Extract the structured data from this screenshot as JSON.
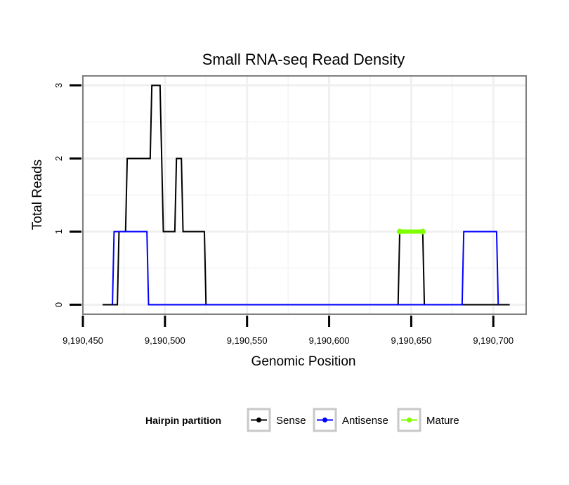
{
  "chart_data": {
    "type": "line",
    "title": "Small RNA-seq Read Density",
    "xlabel": "Genomic Position",
    "ylabel": "Total Reads",
    "xlim": [
      9190450,
      9190720
    ],
    "ylim": [
      -0.13,
      3.13
    ],
    "x_ticks": [
      {
        "value": 9190450,
        "label": "9,190,450"
      },
      {
        "value": 9190500,
        "label": "9,190,500"
      },
      {
        "value": 9190550,
        "label": "9,190,550"
      },
      {
        "value": 9190600,
        "label": "9,190,600"
      },
      {
        "value": 9190650,
        "label": "9,190,650"
      },
      {
        "value": 9190700,
        "label": "9,190,700"
      }
    ],
    "y_ticks": [
      {
        "value": 0,
        "label": "0"
      },
      {
        "value": 1,
        "label": "1"
      },
      {
        "value": 2,
        "label": "2"
      },
      {
        "value": 3,
        "label": "3"
      }
    ],
    "grid": true,
    "legend": {
      "title": "Hairpin partition",
      "position": "bottom",
      "entries": [
        "Sense",
        "Antisense",
        "Mature"
      ]
    },
    "series": [
      {
        "name": "Sense",
        "color": "#000000",
        "x": [
          9190462,
          9190471,
          9190472,
          9190476,
          9190477,
          9190491,
          9190492,
          9190497,
          9190499,
          9190506,
          9190507,
          9190510,
          9190511,
          9190524,
          9190525,
          9190642,
          9190643,
          9190657,
          9190658,
          9190710
        ],
        "y": [
          0,
          0,
          1,
          1,
          2,
          2,
          3,
          3,
          1,
          1,
          2,
          2,
          1,
          1,
          0,
          0,
          1,
          1,
          0,
          0
        ]
      },
      {
        "name": "Antisense",
        "color": "#0000ff",
        "x": [
          9190468,
          9190469,
          9190489,
          9190490,
          9190681,
          9190682,
          9190702,
          9190703
        ],
        "y": [
          0,
          1,
          1,
          0,
          0,
          1,
          1,
          0
        ]
      },
      {
        "name": "Mature",
        "color": "#7fff00",
        "x": [
          9190643,
          9190657
        ],
        "y": [
          1,
          1
        ]
      }
    ]
  }
}
